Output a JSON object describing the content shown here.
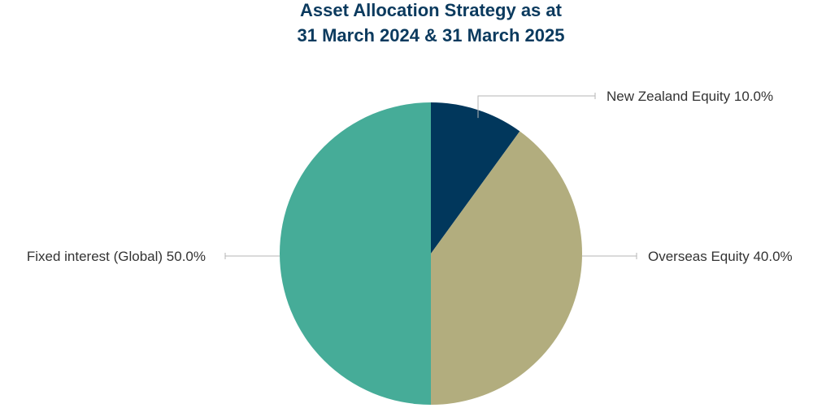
{
  "chart_data": {
    "type": "pie",
    "title": [
      "Asset Allocation Strategy as at",
      "31 March 2024 & 31 March 2025"
    ],
    "slices": [
      {
        "label": "New Zealand Equity 10.0%",
        "value": 10.0,
        "color": "#01375c"
      },
      {
        "label": "Overseas Equity 40.0%",
        "value": 40.0,
        "color": "#b2ad7e"
      },
      {
        "label": "Fixed interest (Global) 50.0%",
        "value": 50.0,
        "color": "#46ac98"
      }
    ],
    "start": "top",
    "direction": "clockwise"
  }
}
